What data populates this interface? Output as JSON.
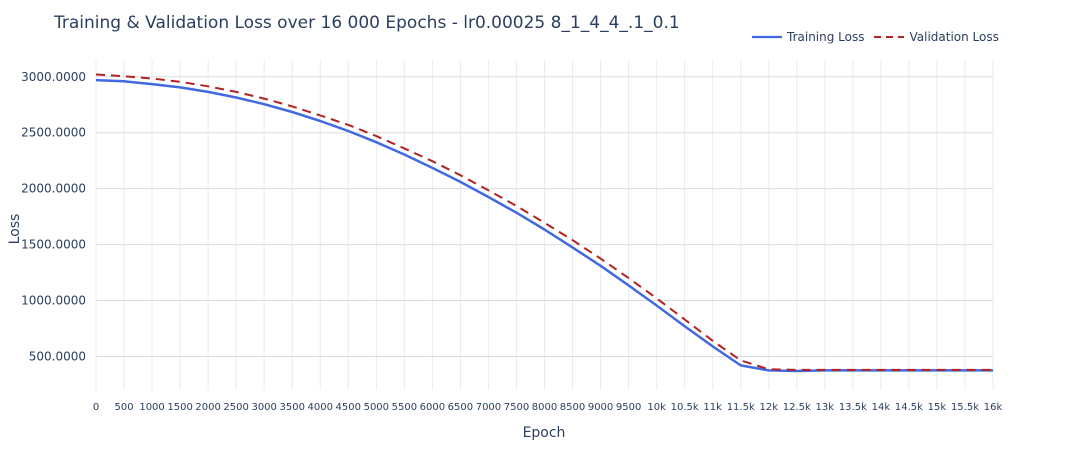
{
  "chart_data": {
    "type": "line",
    "title": "Training & Validation Loss over 16 000 Epochs - lr0.00025 8_1_4_4_.1_0.1",
    "xlabel": "Epoch",
    "ylabel": "Loss",
    "xlim": [
      0,
      16000
    ],
    "ylim": [
      200,
      3150
    ],
    "grid": true,
    "legend_position": "top-right",
    "x_ticks": [
      {
        "value": 0,
        "label": "0"
      },
      {
        "value": 500,
        "label": "500"
      },
      {
        "value": 1000,
        "label": "1000"
      },
      {
        "value": 1500,
        "label": "1500"
      },
      {
        "value": 2000,
        "label": "2000"
      },
      {
        "value": 2500,
        "label": "2500"
      },
      {
        "value": 3000,
        "label": "3000"
      },
      {
        "value": 3500,
        "label": "3500"
      },
      {
        "value": 4000,
        "label": "4000"
      },
      {
        "value": 4500,
        "label": "4500"
      },
      {
        "value": 5000,
        "label": "5000"
      },
      {
        "value": 5500,
        "label": "5500"
      },
      {
        "value": 6000,
        "label": "6000"
      },
      {
        "value": 6500,
        "label": "6500"
      },
      {
        "value": 7000,
        "label": "7000"
      },
      {
        "value": 7500,
        "label": "7500"
      },
      {
        "value": 8000,
        "label": "8000"
      },
      {
        "value": 8500,
        "label": "8500"
      },
      {
        "value": 9000,
        "label": "9000"
      },
      {
        "value": 9500,
        "label": "9500"
      },
      {
        "value": 10000,
        "label": "10k"
      },
      {
        "value": 10500,
        "label": "10.5k"
      },
      {
        "value": 11000,
        "label": "11k"
      },
      {
        "value": 11500,
        "label": "11.5k"
      },
      {
        "value": 12000,
        "label": "12k"
      },
      {
        "value": 12500,
        "label": "12.5k"
      },
      {
        "value": 13000,
        "label": "13k"
      },
      {
        "value": 13500,
        "label": "13.5k"
      },
      {
        "value": 14000,
        "label": "14k"
      },
      {
        "value": 14500,
        "label": "14.5k"
      },
      {
        "value": 15000,
        "label": "15k"
      },
      {
        "value": 15500,
        "label": "15.5k"
      },
      {
        "value": 16000,
        "label": "16k"
      }
    ],
    "y_ticks": [
      {
        "value": 500,
        "label": "500.0000"
      },
      {
        "value": 1000,
        "label": "1000.0000"
      },
      {
        "value": 1500,
        "label": "1500.0000"
      },
      {
        "value": 2000,
        "label": "2000.0000"
      },
      {
        "value": 2500,
        "label": "2500.0000"
      },
      {
        "value": 3000,
        "label": "3000.0000"
      }
    ],
    "series": [
      {
        "name": "Training Loss",
        "color": "#4169e1",
        "dash": "solid",
        "x": [
          0,
          500,
          1000,
          1500,
          2000,
          2500,
          3000,
          3500,
          4000,
          4500,
          5000,
          5500,
          6000,
          6500,
          7000,
          7500,
          8000,
          8500,
          9000,
          9500,
          10000,
          10500,
          11000,
          11500,
          12000,
          12500,
          13000,
          13500,
          14000,
          14500,
          15000,
          15500,
          16000
        ],
        "y": [
          2970,
          2960,
          2935,
          2905,
          2865,
          2815,
          2755,
          2685,
          2605,
          2515,
          2415,
          2305,
          2185,
          2060,
          1925,
          1785,
          1635,
          1475,
          1310,
          1135,
          955,
          770,
          590,
          420,
          375,
          370,
          375,
          375,
          375,
          375,
          375,
          375,
          375
        ]
      },
      {
        "name": "Validation Loss",
        "color": "#b22222",
        "dash": "dash",
        "x": [
          0,
          500,
          1000,
          1500,
          2000,
          2500,
          3000,
          3500,
          4000,
          4500,
          5000,
          5500,
          6000,
          6500,
          7000,
          7500,
          8000,
          8500,
          9000,
          9500,
          10000,
          10500,
          11000,
          11500,
          12000,
          12500,
          13000,
          13500,
          14000,
          14500,
          15000,
          15500,
          16000
        ],
        "y": [
          3020,
          3005,
          2985,
          2955,
          2915,
          2865,
          2805,
          2735,
          2655,
          2570,
          2470,
          2360,
          2245,
          2120,
          1985,
          1845,
          1695,
          1540,
          1375,
          1200,
          1020,
          830,
          640,
          465,
          385,
          380,
          380,
          380,
          380,
          380,
          380,
          380,
          380
        ]
      }
    ]
  }
}
